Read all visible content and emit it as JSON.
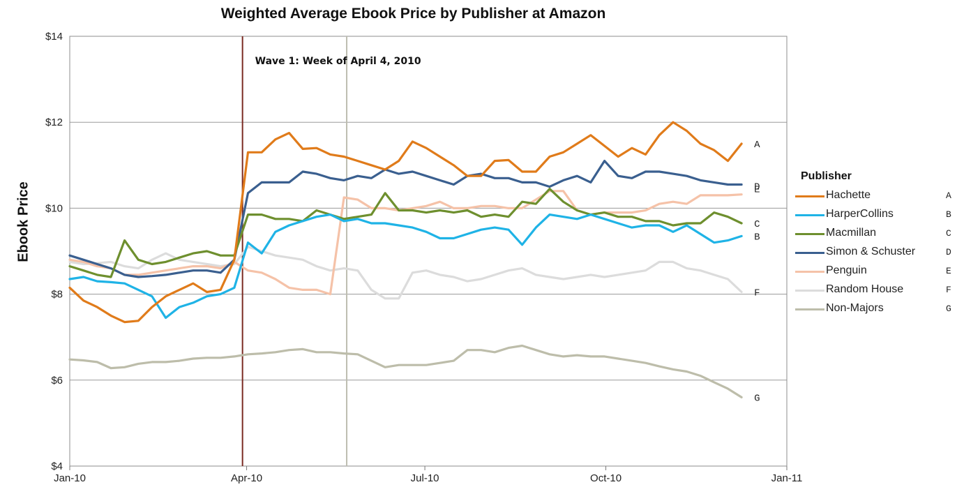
{
  "chart_data": {
    "type": "line",
    "title": "Weighted Average Ebook Price by Publisher at Amazon",
    "ylabel": "Ebook Price",
    "xlabel": "",
    "ylim": [
      4,
      14
    ],
    "yticks": [
      4,
      6,
      8,
      10,
      12,
      14
    ],
    "ytick_labels": [
      "$4",
      "$6",
      "$8",
      "$10",
      "$12",
      "$14"
    ],
    "xticks": [
      {
        "label": "Jan-10",
        "week": 0
      },
      {
        "label": "Apr-10",
        "week": 12.9
      },
      {
        "label": "Jul-10",
        "week": 25.9
      },
      {
        "label": "Oct-10",
        "week": 39.1
      },
      {
        "label": "Jan-11",
        "week": 52.3
      }
    ],
    "x_unit": "weeks since Jan-10",
    "grid": "horizontal",
    "legend": {
      "title": "Publisher",
      "placement": "right"
    },
    "annotations": [
      {
        "text": "Wave 1: Week of April 4, 2010",
        "week": 12.6,
        "color": "#7a2a22"
      }
    ],
    "vline_secondary": {
      "week": 20.2,
      "color": "#bdbdb0"
    },
    "series": [
      {
        "name": "Hachette",
        "code": "A",
        "color": "#e07b1a",
        "values": [
          8.15,
          7.85,
          7.7,
          7.5,
          7.35,
          7.38,
          7.7,
          7.95,
          8.1,
          8.25,
          8.05,
          8.1,
          8.8,
          11.3,
          11.3,
          11.6,
          11.75,
          11.38,
          11.4,
          11.25,
          11.2,
          11.1,
          11.0,
          10.9,
          11.1,
          11.55,
          11.4,
          11.2,
          11.0,
          10.75,
          10.75,
          11.1,
          11.12,
          10.85,
          10.85,
          11.2,
          11.3,
          11.5,
          11.7,
          11.45,
          11.2,
          11.4,
          11.25,
          11.7,
          12.0,
          11.8,
          11.5,
          11.35,
          11.1,
          11.5
        ]
      },
      {
        "name": "HarperCollins",
        "code": "B",
        "color": "#1fb3e6",
        "values": [
          8.35,
          8.4,
          8.3,
          8.28,
          8.25,
          8.1,
          7.95,
          7.45,
          7.7,
          7.8,
          7.95,
          8.0,
          8.15,
          9.2,
          8.95,
          9.45,
          9.6,
          9.7,
          9.8,
          9.85,
          9.7,
          9.75,
          9.65,
          9.65,
          9.6,
          9.55,
          9.45,
          9.3,
          9.3,
          9.4,
          9.5,
          9.55,
          9.5,
          9.15,
          9.55,
          9.85,
          9.8,
          9.75,
          9.85,
          9.75,
          9.65,
          9.55,
          9.6,
          9.6,
          9.45,
          9.6,
          9.4,
          9.2,
          9.25,
          9.35
        ]
      },
      {
        "name": "Macmillan",
        "code": "C",
        "color": "#6e8f2e",
        "values": [
          8.65,
          8.55,
          8.45,
          8.4,
          9.25,
          8.8,
          8.7,
          8.75,
          8.85,
          8.95,
          9.0,
          8.9,
          8.9,
          9.85,
          9.85,
          9.75,
          9.75,
          9.7,
          9.95,
          9.85,
          9.75,
          9.8,
          9.85,
          10.35,
          9.95,
          9.95,
          9.9,
          9.95,
          9.9,
          9.95,
          9.8,
          9.85,
          9.8,
          10.15,
          10.1,
          10.45,
          10.15,
          9.95,
          9.85,
          9.9,
          9.8,
          9.8,
          9.7,
          9.7,
          9.6,
          9.65,
          9.65,
          9.9,
          9.8,
          9.65
        ]
      },
      {
        "name": "Simon & Schuster",
        "code": "D",
        "color": "#3a5f8f",
        "values": [
          8.9,
          8.8,
          8.7,
          8.6,
          8.45,
          8.4,
          8.42,
          8.45,
          8.5,
          8.55,
          8.55,
          8.5,
          8.8,
          10.35,
          10.6,
          10.6,
          10.6,
          10.85,
          10.8,
          10.7,
          10.65,
          10.75,
          10.7,
          10.9,
          10.8,
          10.85,
          10.75,
          10.65,
          10.55,
          10.75,
          10.8,
          10.7,
          10.7,
          10.6,
          10.6,
          10.5,
          10.65,
          10.75,
          10.6,
          11.1,
          10.75,
          10.7,
          10.85,
          10.85,
          10.8,
          10.75,
          10.65,
          10.6,
          10.55,
          10.55
        ]
      },
      {
        "name": "Penguin",
        "code": "E",
        "color": "#f5c2a8",
        "values": [
          8.8,
          8.75,
          8.65,
          8.6,
          8.45,
          8.45,
          8.5,
          8.55,
          8.6,
          8.65,
          8.65,
          8.6,
          8.75,
          8.55,
          8.5,
          8.35,
          8.15,
          8.1,
          8.1,
          8.0,
          10.25,
          10.2,
          10.0,
          10.0,
          9.95,
          10.0,
          10.05,
          10.15,
          10.0,
          10.0,
          10.05,
          10.05,
          10.0,
          10.0,
          10.2,
          10.4,
          10.4,
          9.95,
          9.85,
          9.9,
          9.9,
          9.9,
          9.95,
          10.1,
          10.15,
          10.1,
          10.3,
          10.3,
          10.3,
          10.32
        ]
      },
      {
        "name": "Random House",
        "code": "F",
        "color": "#dcdcdc",
        "values": [
          8.75,
          8.7,
          8.72,
          8.75,
          8.65,
          8.6,
          8.8,
          8.95,
          8.8,
          8.75,
          8.7,
          8.65,
          8.7,
          9.1,
          9.0,
          8.9,
          8.85,
          8.8,
          8.65,
          8.55,
          8.6,
          8.55,
          8.1,
          7.9,
          7.9,
          8.5,
          8.55,
          8.45,
          8.4,
          8.3,
          8.35,
          8.45,
          8.55,
          8.6,
          8.45,
          8.4,
          8.35,
          8.4,
          8.45,
          8.4,
          8.45,
          8.5,
          8.55,
          8.75,
          8.75,
          8.6,
          8.55,
          8.45,
          8.35,
          8.05
        ]
      },
      {
        "name": "Non-Majors",
        "code": "G",
        "color": "#bdbdaa",
        "values": [
          6.48,
          6.46,
          6.42,
          6.28,
          6.3,
          6.38,
          6.42,
          6.42,
          6.45,
          6.5,
          6.52,
          6.52,
          6.55,
          6.6,
          6.62,
          6.65,
          6.7,
          6.72,
          6.65,
          6.65,
          6.62,
          6.6,
          6.45,
          6.3,
          6.35,
          6.35,
          6.35,
          6.4,
          6.45,
          6.7,
          6.7,
          6.65,
          6.75,
          6.8,
          6.7,
          6.6,
          6.55,
          6.58,
          6.55,
          6.55,
          6.5,
          6.45,
          6.4,
          6.32,
          6.25,
          6.2,
          6.1,
          5.95,
          5.8,
          5.6
        ]
      }
    ]
  }
}
